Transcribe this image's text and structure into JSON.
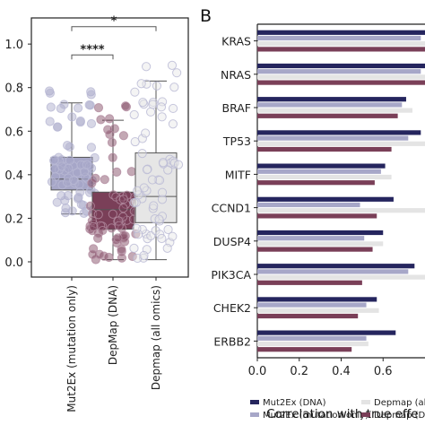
{
  "chart_data": [
    {
      "type": "box",
      "panel_label": "",
      "categories": [
        "Mut2Ex (mutation only)",
        "DepMap (DNA)",
        "Depmap (all omics)"
      ],
      "colors": [
        "#a7a7c8",
        "#7a3f58",
        "#e6e6e6"
      ],
      "ytick_labels": [
        "0.0",
        "0.2",
        "0.4",
        "0.6",
        "0.8",
        "1.0"
      ],
      "yticks": [
        0.0,
        0.2,
        0.4,
        0.6,
        0.8,
        1.0
      ],
      "ylim": [
        -0.07,
        1.12
      ],
      "boxes": [
        {
          "q1": 0.33,
          "median": 0.38,
          "q3": 0.48,
          "whisker_low": 0.22,
          "whisker_high": 0.73
        },
        {
          "q1": 0.15,
          "median": 0.24,
          "q3": 0.32,
          "whisker_low": 0.01,
          "whisker_high": 0.65
        },
        {
          "q1": 0.18,
          "median": 0.3,
          "q3": 0.5,
          "whisker_low": 0.01,
          "whisker_high": 0.83
        }
      ],
      "significance": [
        {
          "from": 0,
          "to": 1,
          "y": 0.95,
          "label": "****"
        },
        {
          "from": 0,
          "to": 2,
          "y": 1.08,
          "label": "*"
        }
      ]
    },
    {
      "type": "bar",
      "orientation": "horizontal",
      "panel_label": "B",
      "genes": [
        "KRAS",
        "NRAS",
        "BRAF",
        "TP53",
        "MITF",
        "CCND1",
        "DUSP4",
        "PIK3CA",
        "CHEK2",
        "ERBB2"
      ],
      "series": [
        {
          "name": "Mut2Ex (DNA)",
          "color": "#25255e",
          "values": [
            0.8,
            0.8,
            0.71,
            0.78,
            0.61,
            0.65,
            0.6,
            0.75,
            0.57,
            0.66
          ]
        },
        {
          "name": "Mut2Ex (mutation only)",
          "color": "#a7a7c8",
          "values": [
            0.78,
            0.78,
            0.69,
            0.72,
            0.59,
            0.49,
            0.51,
            0.72,
            0.52,
            0.52
          ]
        },
        {
          "name": "Depmap (all omics)",
          "color": "#e4e4e4",
          "values": [
            0.8,
            0.8,
            0.74,
            0.8,
            0.64,
            0.8,
            0.6,
            0.8,
            0.58,
            0.53
          ]
        },
        {
          "name": "Depmap (DNA)",
          "color": "#7a3f58",
          "values": [
            0.8,
            0.8,
            0.67,
            0.64,
            0.56,
            0.57,
            0.55,
            0.5,
            0.48,
            0.45
          ]
        }
      ],
      "xticks": [
        0.0,
        0.2,
        0.4,
        0.6
      ],
      "xtick_labels": [
        "0.0",
        "0.2",
        "0.4",
        "0.6"
      ],
      "xlim": [
        0,
        0.8
      ],
      "xlabel": "Correlation with true effe",
      "legend": {
        "placement": "bottom",
        "labels": [
          "Mut2Ex (DNA)",
          "Mut2Ex (mutation only)",
          "Depmap (all",
          "Depmap (DNA"
        ]
      }
    }
  ]
}
